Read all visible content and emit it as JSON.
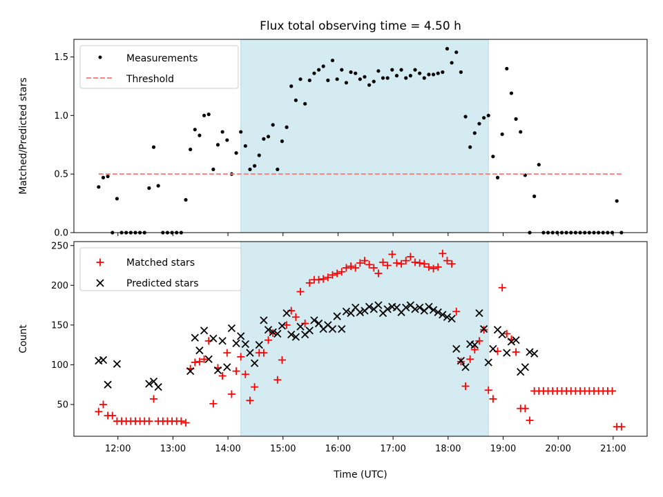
{
  "chart_data": [
    {
      "type": "scatter",
      "title": "Flux total observing time = 4.50 h",
      "xlabel": "",
      "ylabel": "Matched/Predicted stars",
      "ylim": [
        0,
        1.65
      ],
      "yticks": [
        0,
        0.5,
        1.0,
        1.5
      ],
      "ytick_labels": [
        "0.0",
        "0.5",
        "1.0",
        "1.5"
      ],
      "shaded_span": [
        "14:14",
        "18:44"
      ],
      "shade_color": "#d4ebf2",
      "legend_position": "top-left",
      "series": [
        {
          "name": "Measurements",
          "marker": "dot",
          "color": "#000000",
          "x": [
            "11:39",
            "11:44",
            "11:49",
            "11:54",
            "11:59",
            "12:04",
            "12:09",
            "12:14",
            "12:19",
            "12:24",
            "12:29",
            "12:34",
            "12:39",
            "12:44",
            "12:49",
            "12:54",
            "12:59",
            "13:04",
            "13:09",
            "13:14",
            "13:19",
            "13:24",
            "13:29",
            "13:34",
            "13:39",
            "13:44",
            "13:49",
            "13:54",
            "13:59",
            "14:04",
            "14:09",
            "14:14",
            "14:19",
            "14:24",
            "14:29",
            "14:34",
            "14:39",
            "14:44",
            "14:49",
            "14:54",
            "14:59",
            "15:04",
            "15:09",
            "15:14",
            "15:19",
            "15:24",
            "15:29",
            "15:34",
            "15:39",
            "15:44",
            "15:49",
            "15:54",
            "15:59",
            "16:04",
            "16:09",
            "16:14",
            "16:19",
            "16:24",
            "16:29",
            "16:34",
            "16:39",
            "16:44",
            "16:49",
            "16:54",
            "16:59",
            "17:04",
            "17:09",
            "17:14",
            "17:19",
            "17:24",
            "17:29",
            "17:34",
            "17:39",
            "17:44",
            "17:49",
            "17:54",
            "17:59",
            "18:04",
            "18:09",
            "18:14",
            "18:19",
            "18:24",
            "18:29",
            "18:34",
            "18:39",
            "18:44",
            "18:49",
            "18:54",
            "18:59",
            "19:04",
            "19:09",
            "19:14",
            "19:19",
            "19:24",
            "19:29",
            "19:34",
            "19:39",
            "19:44",
            "19:49",
            "19:54",
            "19:59",
            "20:04",
            "20:09",
            "20:14",
            "20:19",
            "20:24",
            "20:29",
            "20:34",
            "20:39",
            "20:44",
            "20:49",
            "20:54",
            "20:59",
            "21:04",
            "21:09"
          ],
          "y": [
            0.39,
            0.47,
            0.48,
            0.0,
            0.29,
            0.0,
            0.0,
            0.0,
            0.0,
            0.0,
            0.0,
            0.38,
            0.73,
            0.4,
            0.0,
            0.0,
            0.0,
            0.0,
            0.0,
            0.28,
            0.71,
            0.88,
            0.83,
            1.0,
            1.01,
            0.54,
            0.75,
            0.86,
            0.79,
            0.5,
            0.68,
            0.86,
            0.74,
            0.54,
            0.57,
            0.66,
            0.8,
            0.82,
            0.92,
            0.54,
            0.78,
            0.9,
            1.25,
            1.13,
            1.31,
            1.1,
            1.3,
            1.36,
            1.39,
            1.42,
            1.3,
            1.47,
            1.31,
            1.39,
            1.28,
            1.37,
            1.36,
            1.31,
            1.33,
            1.26,
            1.29,
            1.38,
            1.32,
            1.32,
            1.39,
            1.34,
            1.39,
            1.32,
            1.34,
            1.39,
            1.36,
            1.32,
            1.35,
            1.35,
            1.36,
            1.37,
            1.57,
            1.45,
            1.54,
            1.37,
            0.99,
            0.73,
            0.85,
            0.93,
            0.98,
            1.0,
            0.65,
            0.47,
            0.84,
            1.4,
            1.19,
            0.97,
            0.86,
            0.49,
            0.0,
            0.31,
            0.58,
            0.0,
            0.0,
            0.0,
            0.0,
            0.0,
            0.0,
            0.0,
            0.0,
            0.0,
            0.0,
            0.0,
            0.0,
            0.0,
            0.0,
            0.0,
            0.0,
            0.27,
            0.0
          ]
        },
        {
          "name": "Threshold",
          "marker": "dashed-line",
          "color": "#ff7f7f",
          "x": [
            "11:39",
            "21:09"
          ],
          "y": [
            0.5,
            0.5
          ]
        }
      ]
    },
    {
      "type": "scatter",
      "title": "",
      "xlabel": "Time (UTC)",
      "ylabel": "Count",
      "ylim": [
        10,
        255
      ],
      "yticks": [
        50,
        100,
        150,
        200,
        250
      ],
      "ytick_labels": [
        "50",
        "100",
        "150",
        "200",
        "250"
      ],
      "xticks": [
        "12:00",
        "13:00",
        "14:00",
        "15:00",
        "16:00",
        "17:00",
        "18:00",
        "19:00",
        "20:00",
        "21:00"
      ],
      "shaded_span": [
        "14:14",
        "18:44"
      ],
      "shade_color": "#d4ebf2",
      "legend_position": "top-left",
      "series": [
        {
          "name": "Matched stars",
          "marker": "plus",
          "color": "#ff0000",
          "x": [
            "11:39",
            "11:44",
            "11:49",
            "11:54",
            "11:59",
            "12:04",
            "12:09",
            "12:14",
            "12:19",
            "12:24",
            "12:29",
            "12:34",
            "12:39",
            "12:44",
            "12:49",
            "12:54",
            "12:59",
            "13:04",
            "13:09",
            "13:14",
            "13:19",
            "13:24",
            "13:29",
            "13:34",
            "13:39",
            "13:44",
            "13:49",
            "13:54",
            "13:59",
            "14:04",
            "14:09",
            "14:14",
            "14:19",
            "14:24",
            "14:29",
            "14:34",
            "14:39",
            "14:44",
            "14:49",
            "14:54",
            "14:59",
            "15:04",
            "15:09",
            "15:14",
            "15:19",
            "15:24",
            "15:29",
            "15:34",
            "15:39",
            "15:44",
            "15:49",
            "15:54",
            "15:59",
            "16:04",
            "16:09",
            "16:14",
            "16:19",
            "16:24",
            "16:29",
            "16:34",
            "16:39",
            "16:44",
            "16:49",
            "16:54",
            "16:59",
            "17:04",
            "17:09",
            "17:14",
            "17:19",
            "17:24",
            "17:29",
            "17:34",
            "17:39",
            "17:44",
            "17:49",
            "17:54",
            "17:59",
            "18:04",
            "18:09",
            "18:14",
            "18:19",
            "18:24",
            "18:29",
            "18:34",
            "18:39",
            "18:44",
            "18:49",
            "18:54",
            "18:59",
            "19:04",
            "19:09",
            "19:14",
            "19:19",
            "19:24",
            "19:29",
            "19:34",
            "19:39",
            "19:44",
            "19:49",
            "19:54",
            "19:59",
            "20:04",
            "20:09",
            "20:14",
            "20:19",
            "20:24",
            "20:29",
            "20:34",
            "20:39",
            "20:44",
            "20:49",
            "20:54",
            "20:59",
            "21:04",
            "21:09"
          ],
          "y": [
            41,
            50,
            36,
            36,
            29,
            29,
            29,
            29,
            29,
            29,
            29,
            29,
            57,
            29,
            29,
            29,
            29,
            29,
            29,
            27,
            95,
            103,
            104,
            107,
            130,
            51,
            96,
            86,
            115,
            63,
            92,
            110,
            88,
            55,
            72,
            115,
            115,
            131,
            140,
            81,
            106,
            150,
            168,
            160,
            192,
            152,
            203,
            207,
            207,
            208,
            210,
            213,
            215,
            217,
            222,
            224,
            222,
            228,
            231,
            226,
            222,
            215,
            229,
            225,
            239,
            228,
            227,
            231,
            236,
            229,
            228,
            227,
            223,
            221,
            223,
            240,
            231,
            227,
            167,
            104,
            73,
            107,
            119,
            130,
            144,
            68,
            57,
            117,
            197,
            139,
            132,
            116,
            45,
            45,
            30,
            67,
            67,
            67,
            67,
            67,
            67,
            67,
            67,
            67,
            67,
            67,
            67,
            67,
            67,
            67,
            67,
            67,
            67,
            22,
            22
          ]
        },
        {
          "name": "Predicted stars",
          "marker": "x",
          "color": "#000000",
          "x": [
            "11:39",
            "11:44",
            "11:49",
            "11:59",
            "12:34",
            "12:39",
            "12:44",
            "13:19",
            "13:24",
            "13:29",
            "13:34",
            "13:39",
            "13:44",
            "13:49",
            "13:54",
            "13:59",
            "14:04",
            "14:09",
            "14:14",
            "14:19",
            "14:24",
            "14:29",
            "14:34",
            "14:39",
            "14:44",
            "14:49",
            "14:54",
            "14:59",
            "15:04",
            "15:09",
            "15:14",
            "15:19",
            "15:24",
            "15:29",
            "15:34",
            "15:39",
            "15:44",
            "15:49",
            "15:54",
            "15:59",
            "16:04",
            "16:09",
            "16:14",
            "16:19",
            "16:24",
            "16:29",
            "16:34",
            "16:39",
            "16:44",
            "16:49",
            "16:54",
            "16:59",
            "17:04",
            "17:09",
            "17:14",
            "17:19",
            "17:24",
            "17:29",
            "17:34",
            "17:39",
            "17:44",
            "17:49",
            "17:54",
            "17:59",
            "18:04",
            "18:09",
            "18:14",
            "18:19",
            "18:24",
            "18:29",
            "18:34",
            "18:39",
            "18:44",
            "18:49",
            "18:54",
            "18:59",
            "19:04",
            "19:09",
            "19:14",
            "19:19",
            "19:24",
            "19:29",
            "19:34"
          ],
          "y": [
            105,
            106,
            75,
            101,
            76,
            79,
            72,
            92,
            134,
            118,
            143,
            107,
            133,
            93,
            130,
            97,
            146,
            127,
            136,
            126,
            115,
            102,
            125,
            156,
            144,
            141,
            139,
            149,
            165,
            138,
            135,
            148,
            138,
            143,
            156,
            152,
            145,
            150,
            145,
            161,
            145,
            167,
            165,
            172,
            166,
            168,
            173,
            170,
            175,
            165,
            170,
            173,
            172,
            166,
            172,
            175,
            170,
            172,
            168,
            173,
            169,
            166,
            163,
            160,
            158,
            120,
            105,
            97,
            126,
            125,
            165,
            145,
            103,
            120,
            144,
            138,
            115,
            129,
            131,
            91,
            97,
            116,
            114
          ]
        }
      ]
    }
  ]
}
